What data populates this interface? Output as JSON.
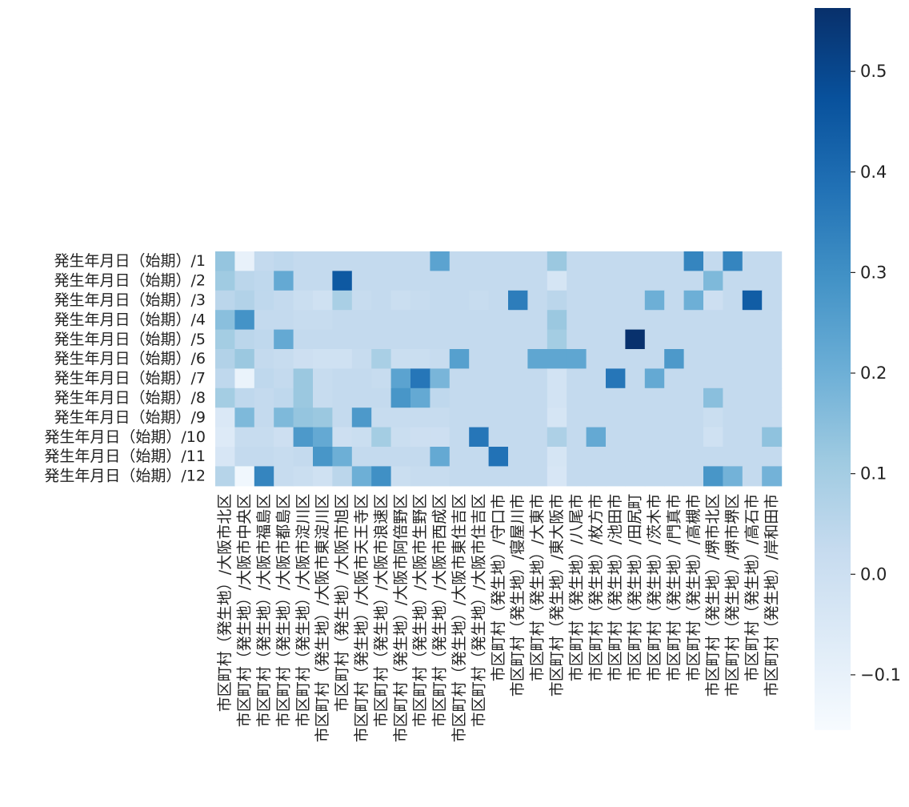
{
  "chart_data": {
    "type": "heatmap",
    "colormap": "Blues",
    "colorbar": {
      "vmin": -0.155,
      "vmax": 0.563,
      "ticks": [
        -0.1,
        0.0,
        0.1,
        0.2,
        0.3,
        0.4,
        0.5
      ],
      "tick_labels": [
        "−0.1",
        "0.0",
        "0.1",
        "0.2",
        "0.3",
        "0.4",
        "0.5"
      ]
    },
    "rows": [
      "発生年月日（始期）/1",
      "発生年月日（始期）/2",
      "発生年月日（始期）/3",
      "発生年月日（始期）/4",
      "発生年月日（始期）/5",
      "発生年月日（始期）/6",
      "発生年月日（始期）/7",
      "発生年月日（始期）/8",
      "発生年月日（始期）/9",
      "発生年月日（始期）/10",
      "発生年月日（始期）/11",
      "発生年月日（始期）/12"
    ],
    "columns": [
      "市区町村（発生地）/大阪市北区",
      "市区町村（発生地）/大阪市中央区",
      "市区町村（発生地）/大阪市福島区",
      "市区町村（発生地）/大阪市都島区",
      "市区町村（発生地）/大阪市淀川区",
      "市区町村（発生地）/大阪市東淀川区",
      "市区町村（発生地）/大阪市旭区",
      "市区町村（発生地）/大阪市天王寺区",
      "市区町村（発生地）/大阪市浪速区",
      "市区町村（発生地）/大阪市阿倍野区",
      "市区町村（発生地）/大阪市生野区",
      "市区町村（発生地）/大阪市西成区",
      "市区町村（発生地）/大阪市東住吉区",
      "市区町村（発生地）/大阪市住吉区",
      "市区町村（発生地）/守口市",
      "市区町村（発生地）/寝屋川市",
      "市区町村（発生地）/大東市",
      "市区町村（発生地）/東大阪市",
      "市区町村（発生地）/八尾市",
      "市区町村（発生地）/枚方市",
      "市区町村（発生地）/池田市",
      "市区町村（発生地）/田尻町",
      "市区町村（発生地）/茨木市",
      "市区町村（発生地）/門真市",
      "市区町村（発生地）/高槻市",
      "市区町村（発生地）/堺市北区",
      "市区町村（発生地）/堺市堺区",
      "市区町村（発生地）/高石市",
      "市区町村（発生地）/岸和田市"
    ],
    "values": [
      [
        0.13,
        -0.1,
        0.03,
        0.04,
        0.03,
        0.03,
        0.03,
        0.03,
        0.03,
        0.03,
        0.03,
        0.24,
        0.03,
        0.03,
        0.03,
        0.03,
        0.03,
        0.12,
        0.03,
        0.03,
        0.03,
        0.03,
        0.03,
        0.03,
        0.33,
        0.03,
        0.33,
        0.03,
        0.03
      ],
      [
        0.11,
        0.05,
        0.04,
        0.22,
        0.03,
        0.03,
        0.45,
        0.03,
        0.03,
        0.03,
        0.03,
        0.03,
        0.03,
        0.03,
        0.03,
        0.03,
        0.03,
        -0.03,
        0.03,
        0.03,
        0.03,
        0.03,
        0.03,
        0.03,
        0.03,
        0.17,
        0.03,
        0.03,
        0.03
      ],
      [
        0.05,
        0.07,
        0.04,
        0.03,
        0.01,
        -0.01,
        0.09,
        0.02,
        0.03,
        0.01,
        0.02,
        0.03,
        0.03,
        0.02,
        0.03,
        0.35,
        0.03,
        0.05,
        0.03,
        0.03,
        0.03,
        0.03,
        0.2,
        0.03,
        0.2,
        0.0,
        0.03,
        0.44,
        0.03
      ],
      [
        0.15,
        0.29,
        0.03,
        0.03,
        0.02,
        0.02,
        0.03,
        0.03,
        0.03,
        0.03,
        0.03,
        0.03,
        0.03,
        0.03,
        0.03,
        0.03,
        0.03,
        0.12,
        0.03,
        0.03,
        0.03,
        0.03,
        0.03,
        0.03,
        0.03,
        0.03,
        0.03,
        0.03,
        0.03
      ],
      [
        0.1,
        0.05,
        0.04,
        0.22,
        0.03,
        0.03,
        0.03,
        0.03,
        0.03,
        0.03,
        0.03,
        0.03,
        0.03,
        0.03,
        0.03,
        0.03,
        0.03,
        0.1,
        0.03,
        0.03,
        0.03,
        0.56,
        0.03,
        0.03,
        0.03,
        0.03,
        0.03,
        0.03,
        0.03
      ],
      [
        0.07,
        0.12,
        0.03,
        0.02,
        0.0,
        -0.01,
        -0.01,
        0.02,
        0.09,
        0.01,
        0.01,
        0.02,
        0.25,
        0.03,
        0.03,
        0.03,
        0.23,
        0.23,
        0.23,
        0.03,
        0.03,
        0.03,
        0.03,
        0.27,
        0.03,
        0.03,
        0.03,
        0.03,
        0.03
      ],
      [
        0.04,
        -0.11,
        0.04,
        0.03,
        0.12,
        0.02,
        0.03,
        0.03,
        0.02,
        0.24,
        0.37,
        0.18,
        0.03,
        0.03,
        0.03,
        0.03,
        0.03,
        -0.02,
        0.03,
        0.03,
        0.37,
        0.03,
        0.22,
        0.03,
        0.03,
        0.03,
        0.03,
        0.03,
        0.03
      ],
      [
        0.1,
        0.04,
        0.03,
        0.04,
        0.12,
        0.02,
        0.03,
        0.03,
        0.03,
        0.28,
        0.22,
        0.04,
        0.03,
        0.03,
        0.03,
        0.03,
        0.03,
        -0.02,
        0.03,
        0.03,
        0.03,
        0.03,
        0.03,
        0.03,
        0.03,
        0.15,
        0.03,
        0.03,
        0.03
      ],
      [
        -0.05,
        0.17,
        0.03,
        0.17,
        0.13,
        0.12,
        0.03,
        0.27,
        0.02,
        0.02,
        0.02,
        0.02,
        0.03,
        0.03,
        0.03,
        0.03,
        0.03,
        -0.03,
        0.03,
        0.03,
        0.03,
        0.03,
        0.03,
        0.03,
        0.03,
        0.01,
        0.03,
        0.03,
        0.03
      ],
      [
        -0.06,
        0.02,
        0.02,
        0.0,
        0.27,
        0.22,
        0.0,
        0.01,
        0.1,
        0.01,
        0.0,
        0.0,
        0.03,
        0.37,
        0.03,
        0.03,
        0.03,
        0.08,
        0.03,
        0.22,
        0.03,
        0.03,
        0.03,
        0.03,
        0.03,
        -0.01,
        0.03,
        0.03,
        0.14
      ],
      [
        -0.04,
        0.03,
        0.03,
        0.02,
        0.03,
        0.28,
        0.2,
        0.03,
        0.03,
        0.03,
        0.03,
        0.22,
        0.03,
        0.03,
        0.38,
        0.03,
        0.03,
        -0.03,
        0.03,
        0.03,
        0.03,
        0.03,
        0.03,
        0.03,
        0.03,
        0.03,
        0.03,
        0.03,
        0.03
      ],
      [
        0.06,
        -0.13,
        0.33,
        0.02,
        0.01,
        -0.01,
        0.05,
        0.2,
        0.3,
        0.01,
        0.02,
        0.02,
        0.03,
        0.03,
        0.03,
        0.03,
        0.03,
        -0.04,
        0.03,
        0.03,
        0.03,
        0.03,
        0.03,
        0.03,
        0.03,
        0.28,
        0.19,
        0.03,
        0.19
      ]
    ]
  }
}
